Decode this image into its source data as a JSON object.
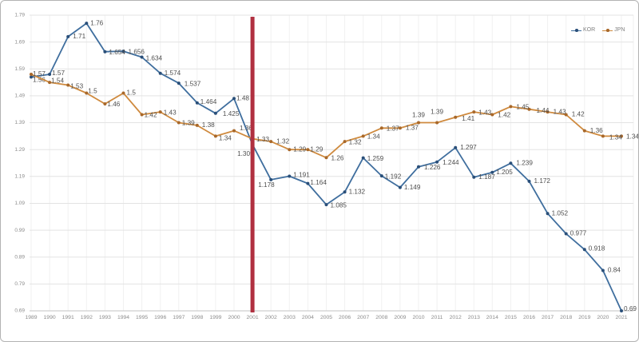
{
  "chart_data": {
    "type": "line",
    "title": "",
    "xlabel": "",
    "ylabel": "",
    "x": [
      1989,
      1990,
      1991,
      1992,
      1993,
      1994,
      1995,
      1996,
      1997,
      1998,
      1999,
      2000,
      2001,
      2002,
      2003,
      2004,
      2005,
      2006,
      2007,
      2008,
      2009,
      2010,
      2011,
      2012,
      2013,
      2014,
      2015,
      2016,
      2017,
      2018,
      2019,
      2020,
      2021
    ],
    "ylim": [
      0.69,
      1.79
    ],
    "ytick_step": 0.1,
    "ytick_labels": [
      "1.79",
      "1.69",
      "1.59",
      "1.49",
      "1.39",
      "1.29",
      "1.19",
      "1.09",
      "0.99",
      "0.89",
      "0.79",
      "0.69"
    ],
    "grid": true,
    "legend_position": "top-right",
    "annotation_line": {
      "x": 2001,
      "color": "#b03040"
    },
    "series": [
      {
        "name": "KOR",
        "color": "#3f6e9e",
        "marker": "#2a4f79",
        "values": [
          1.56,
          1.57,
          1.71,
          1.76,
          1.654,
          1.656,
          1.634,
          1.574,
          1.537,
          1.464,
          1.425,
          1.48,
          1.309,
          1.178,
          1.191,
          1.164,
          1.085,
          1.132,
          1.259,
          1.192,
          1.149,
          1.226,
          1.244,
          1.297,
          1.187,
          1.205,
          1.239,
          1.172,
          1.052,
          0.977,
          0.918,
          0.84,
          0.69
        ],
        "labels": [
          "1.56",
          "1.57",
          "1.71",
          "1.76",
          "1.654",
          "1.656",
          "1.634",
          "1.574",
          "1.537",
          "1.464",
          "1.425",
          "1.48",
          "1.309",
          "1.178",
          "1.191",
          "1.164",
          "1.085",
          "1.132",
          "1.259",
          "1.192",
          "1.149",
          "1.226",
          "1.244",
          "1.297",
          "1.187",
          "1.205",
          "1.239",
          "1.172",
          "1.052",
          "0.977",
          "0.918",
          "0.84",
          "0.69"
        ],
        "label_offsets": [
          [
            2,
            4
          ],
          [
            3,
            -1
          ],
          [
            6,
            0
          ],
          [
            5,
            0
          ],
          [
            5,
            1
          ],
          [
            6,
            1
          ],
          [
            5,
            2
          ],
          [
            5,
            0
          ],
          [
            7,
            1
          ],
          [
            4,
            -1
          ],
          [
            9,
            1
          ],
          [
            3,
            0
          ],
          [
            -19,
            12
          ],
          [
            -16,
            7
          ],
          [
            5,
            -1
          ],
          [
            3,
            -1
          ],
          [
            5,
            1
          ],
          [
            5,
            0
          ],
          [
            5,
            1
          ],
          [
            4,
            1
          ],
          [
            5,
            0
          ],
          [
            7,
            1
          ],
          [
            7,
            1
          ],
          [
            6,
            0
          ],
          [
            6,
            0
          ],
          [
            5,
            0
          ],
          [
            7,
            0
          ],
          [
            6,
            0
          ],
          [
            5,
            0
          ],
          [
            5,
            0
          ],
          [
            5,
            -1
          ],
          [
            6,
            0
          ],
          [
            3,
            -2
          ]
        ]
      },
      {
        "name": "JPN",
        "color": "#cf8a3e",
        "marker": "#a8682a",
        "values": [
          1.57,
          1.54,
          1.53,
          1.5,
          1.46,
          1.5,
          1.42,
          1.43,
          1.39,
          1.38,
          1.34,
          1.36,
          1.33,
          1.32,
          1.29,
          1.29,
          1.26,
          1.32,
          1.34,
          1.37,
          1.37,
          1.39,
          1.39,
          1.41,
          1.43,
          1.42,
          1.45,
          1.44,
          1.43,
          1.42,
          1.36,
          1.34,
          1.34
        ],
        "labels": [
          "1.57",
          "1.54",
          "1.53",
          "1.5",
          "1.46",
          "1.5",
          "1.42",
          "1.43",
          "1.39",
          "1.38",
          "1.34",
          "1.36",
          "1.33",
          "1.32",
          "1.29",
          "1.29",
          "1.26",
          "1.32",
          "1.34",
          "1.37",
          "1.37",
          "1.39",
          "1.39",
          "1.41",
          "1.43",
          "1.42",
          "1.45",
          "1.44",
          "1.43",
          "1.42",
          "1.36",
          "1.34",
          "1.34"
        ],
        "label_offsets": [
          [
            2,
            0
          ],
          [
            2,
            -2
          ],
          [
            3,
            2
          ],
          [
            2,
            -2
          ],
          [
            3,
            1
          ],
          [
            4,
            0
          ],
          [
            3,
            1
          ],
          [
            4,
            1
          ],
          [
            4,
            1
          ],
          [
            6,
            0
          ],
          [
            4,
            3
          ],
          [
            7,
            -3
          ],
          [
            5,
            1
          ],
          [
            7,
            0
          ],
          [
            5,
            0
          ],
          [
            3,
            0
          ],
          [
            6,
            1
          ],
          [
            5,
            1
          ],
          [
            5,
            1
          ],
          [
            6,
            1
          ],
          [
            7,
            0
          ],
          [
            -8,
            -9
          ],
          [
            -8,
            -13
          ],
          [
            8,
            2
          ],
          [
            6,
            1
          ],
          [
            7,
            1
          ],
          [
            7,
            1
          ],
          [
            9,
            2
          ],
          [
            7,
            0
          ],
          [
            7,
            0
          ],
          [
            7,
            0
          ],
          [
            8,
            2
          ],
          [
            6,
            1
          ]
        ]
      }
    ]
  },
  "legend": {
    "items": [
      {
        "label": "KOR"
      },
      {
        "label": "JPN"
      }
    ]
  },
  "colors": {
    "kor_line": "#3f6e9e",
    "jpn_line": "#cf8a3e",
    "reference_line": "#b03040",
    "gridline": "#e3e3e3",
    "axis_text": "#8c8c8c",
    "data_label_text": "#4f4f4f"
  }
}
